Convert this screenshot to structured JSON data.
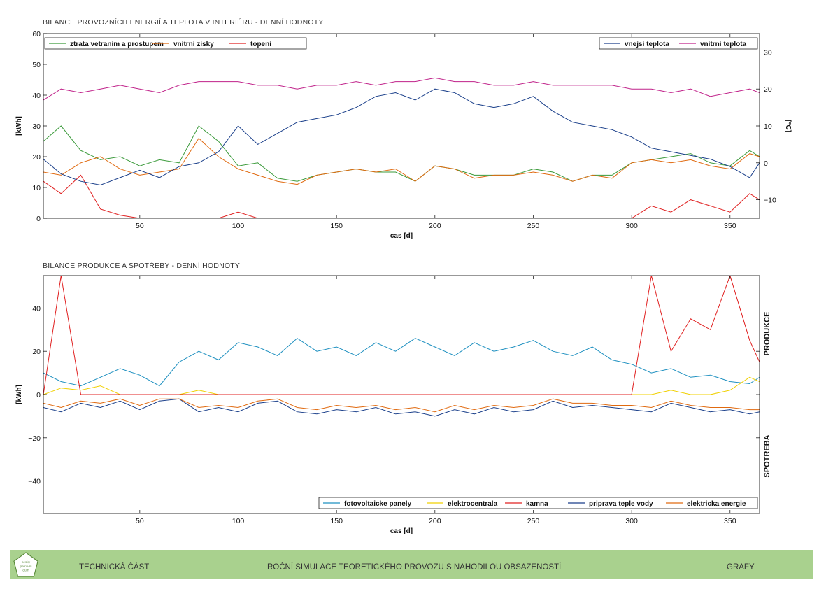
{
  "page": {
    "chart1_title": "BILANCE PROVOZNÍCH ENERGIÍ A TEPLOTA V INTERIÉRU - DENNÍ HODNOTY",
    "chart2_title": "BILANCE PRODUKCE A SPOTŘEBY - DENNÍ HODNOTY",
    "side_produkce": "PRODUKCE",
    "side_spotreba": "SPOTREBA"
  },
  "footer": {
    "logo_lines": [
      "cesky",
      "petrovni",
      "dum"
    ],
    "left": "TECHNICKÁ ČÁST",
    "center": "ROČNÍ SIMULACE TEORETICKÉHO PROVOZU S NAHODILOU OBSAZENOSTÍ",
    "right": "GRAFY",
    "bg_color": "#a9d18e"
  },
  "chart_data": [
    {
      "type": "line",
      "title": "BILANCE PROVOZNÍCH ENERGIÍ A TEPLOTA V INTERIÉRU - DENNÍ HODNOTY",
      "xlabel": "cas [d]",
      "ylabel": "[kWh]",
      "y2label": "[°C]",
      "xlim": [
        1,
        365
      ],
      "ylim": [
        0,
        60
      ],
      "y2lim": [
        -15,
        35
      ],
      "xticks": [
        50,
        100,
        150,
        200,
        250,
        300,
        350
      ],
      "yticks": [
        0,
        10,
        20,
        30,
        40,
        50,
        60
      ],
      "y2ticks": [
        -10,
        0,
        10,
        20,
        30
      ],
      "grid": false,
      "legend_left": "top-left",
      "legend_right": "top-right",
      "x": [
        1,
        10,
        20,
        30,
        40,
        50,
        60,
        70,
        80,
        90,
        100,
        110,
        120,
        130,
        140,
        150,
        160,
        170,
        180,
        190,
        200,
        210,
        220,
        230,
        240,
        250,
        260,
        270,
        280,
        290,
        300,
        310,
        320,
        330,
        340,
        350,
        360,
        365
      ],
      "series": [
        {
          "name": "ztrata vetranim a prostupem",
          "axis": "left",
          "color": "#3a9a3a",
          "values": [
            25,
            30,
            22,
            19,
            20,
            17,
            19,
            18,
            30,
            25,
            17,
            18,
            13,
            12,
            14,
            15,
            16,
            15,
            15,
            12,
            17,
            16,
            14,
            14,
            14,
            16,
            15,
            12,
            14,
            14,
            18,
            19,
            20,
            21,
            18,
            17,
            22,
            20
          ]
        },
        {
          "name": "vnitrni zisky",
          "axis": "left",
          "color": "#e06a10",
          "values": [
            15,
            14,
            18,
            20,
            16,
            14,
            15,
            16,
            26,
            20,
            16,
            14,
            12,
            11,
            14,
            15,
            16,
            15,
            16,
            12,
            17,
            16,
            13,
            14,
            14,
            15,
            14,
            12,
            14,
            13,
            18,
            19,
            18,
            19,
            17,
            16,
            21,
            20
          ]
        },
        {
          "name": "topeni",
          "axis": "left",
          "color": "#e02020",
          "values": [
            12,
            8,
            14,
            3,
            1,
            0,
            0,
            0,
            0,
            0,
            2,
            0,
            0,
            0,
            0,
            0,
            0,
            0,
            0,
            0,
            0,
            0,
            0,
            0,
            0,
            0,
            0,
            0,
            0,
            0,
            0,
            4,
            2,
            6,
            4,
            2,
            8,
            6
          ]
        },
        {
          "name": "vnejsi teplota",
          "axis": "right",
          "color": "#1a3f8a",
          "values": [
            1,
            -3,
            -5,
            -6,
            -4,
            -2,
            -4,
            -1,
            0,
            3,
            10,
            5,
            8,
            11,
            12,
            13,
            15,
            18,
            19,
            17,
            20,
            19,
            16,
            15,
            16,
            18,
            14,
            11,
            10,
            9,
            7,
            4,
            3,
            2,
            1,
            -1,
            -4,
            0
          ]
        },
        {
          "name": "vnitrni teplota",
          "axis": "right",
          "color": "#c0228a",
          "values": [
            17,
            20,
            19,
            20,
            21,
            20,
            19,
            21,
            22,
            22,
            22,
            21,
            21,
            20,
            21,
            21,
            22,
            21,
            22,
            22,
            23,
            22,
            22,
            21,
            21,
            22,
            21,
            21,
            21,
            21,
            20,
            20,
            19,
            20,
            18,
            19,
            20,
            19
          ]
        }
      ]
    },
    {
      "type": "line",
      "title": "BILANCE PRODUKCE A SPOTŘEBY - DENNÍ HODNOTY",
      "xlabel": "cas [d]",
      "ylabel": "[kWh]",
      "xlim": [
        1,
        365
      ],
      "ylim": [
        -55,
        55
      ],
      "xticks": [
        50,
        100,
        150,
        200,
        250,
        300,
        350
      ],
      "yticks": [
        -40,
        -20,
        0,
        20,
        40
      ],
      "grid": false,
      "legend": "bottom-right",
      "x": [
        1,
        10,
        20,
        30,
        40,
        50,
        60,
        70,
        80,
        90,
        100,
        110,
        120,
        130,
        140,
        150,
        160,
        170,
        180,
        190,
        200,
        210,
        220,
        230,
        240,
        250,
        260,
        270,
        280,
        290,
        300,
        310,
        320,
        330,
        340,
        350,
        360,
        365
      ],
      "series": [
        {
          "name": "fotovoltaicke panely",
          "color": "#1e90c0",
          "values": [
            10,
            6,
            4,
            8,
            12,
            9,
            4,
            15,
            20,
            16,
            24,
            22,
            18,
            26,
            20,
            22,
            18,
            24,
            20,
            26,
            22,
            18,
            24,
            20,
            22,
            25,
            20,
            18,
            22,
            16,
            14,
            10,
            12,
            8,
            9,
            6,
            5,
            8
          ]
        },
        {
          "name": "elektrocentrala",
          "color": "#f0d000",
          "values": [
            0,
            3,
            2,
            4,
            0,
            0,
            0,
            0,
            2,
            0,
            0,
            0,
            0,
            0,
            0,
            0,
            0,
            0,
            0,
            0,
            0,
            0,
            0,
            0,
            0,
            0,
            0,
            0,
            0,
            0,
            0,
            0,
            2,
            0,
            0,
            2,
            8,
            6
          ]
        },
        {
          "name": "kamna",
          "color": "#e02020",
          "values": [
            0,
            55,
            0,
            0,
            0,
            0,
            0,
            0,
            0,
            0,
            0,
            0,
            0,
            0,
            0,
            0,
            0,
            0,
            0,
            0,
            0,
            0,
            0,
            0,
            0,
            0,
            0,
            0,
            0,
            0,
            0,
            55,
            20,
            35,
            30,
            55,
            25,
            15
          ]
        },
        {
          "name": "priprava teple vody",
          "color": "#1a3f8a",
          "values": [
            -6,
            -8,
            -4,
            -6,
            -3,
            -7,
            -3,
            -2,
            -8,
            -6,
            -8,
            -4,
            -3,
            -8,
            -9,
            -7,
            -8,
            -6,
            -9,
            -8,
            -10,
            -7,
            -9,
            -6,
            -8,
            -7,
            -3,
            -6,
            -5,
            -6,
            -7,
            -8,
            -4,
            -6,
            -8,
            -7,
            -9,
            -8
          ]
        },
        {
          "name": "elektricka energie",
          "color": "#e06a10",
          "values": [
            -4,
            -6,
            -3,
            -4,
            -2,
            -5,
            -2,
            -2,
            -6,
            -5,
            -6,
            -3,
            -2,
            -6,
            -7,
            -5,
            -6,
            -5,
            -7,
            -6,
            -8,
            -5,
            -7,
            -5,
            -6,
            -5,
            -2,
            -4,
            -4,
            -5,
            -5,
            -6,
            -3,
            -5,
            -6,
            -6,
            -7,
            -7
          ]
        }
      ]
    }
  ]
}
